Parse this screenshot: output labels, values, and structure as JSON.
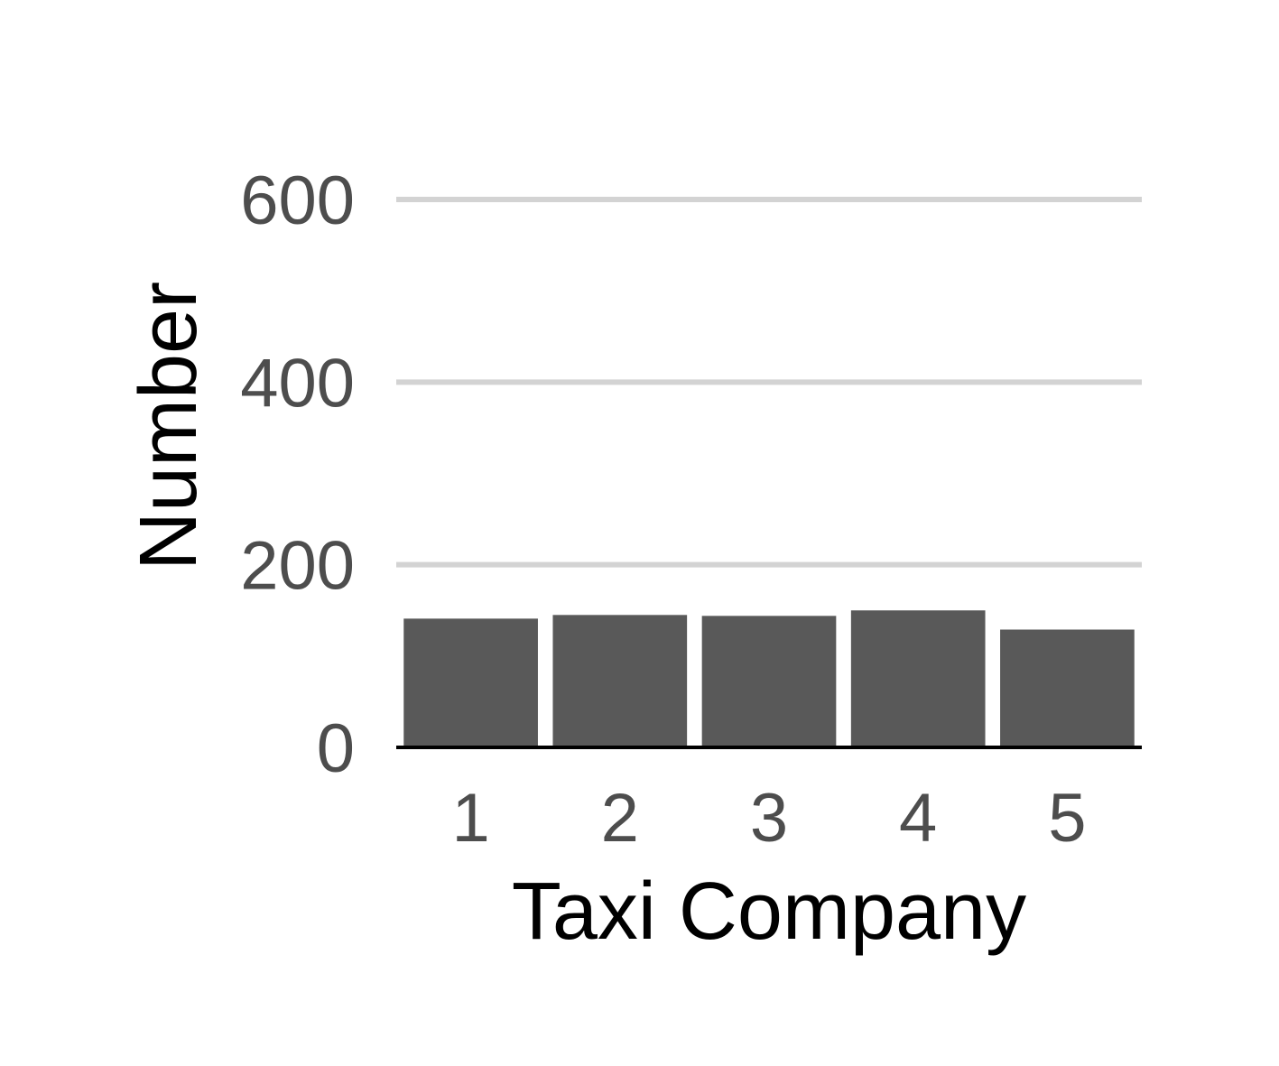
{
  "chart_data": {
    "type": "bar",
    "categories": [
      "1",
      "2",
      "3",
      "4",
      "5"
    ],
    "values": [
      141,
      145,
      144,
      150,
      129
    ],
    "title": "",
    "xlabel": "Taxi Company",
    "ylabel": "Number",
    "ylim": [
      0,
      600
    ],
    "yticks": [
      0,
      200,
      400,
      600
    ],
    "grid": "horizontal major",
    "legend": "none",
    "colors": {
      "bar": "#595959",
      "grid": "#d3d3d3",
      "axis_line": "#000000",
      "tick_text": "#4d4d4d",
      "title_text": "#000000"
    }
  }
}
